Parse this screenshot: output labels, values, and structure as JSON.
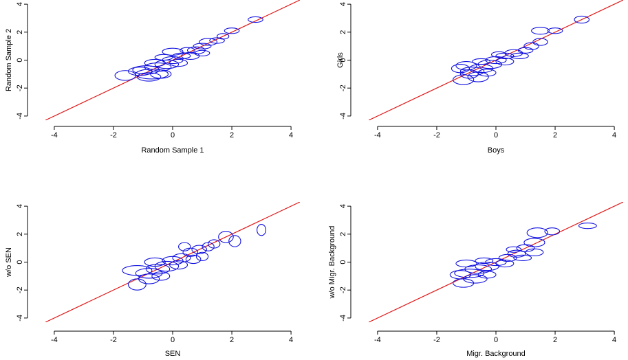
{
  "colors": {
    "ellipse": "#1010e0",
    "identity_line": "#e01818",
    "axis": "#000000"
  },
  "chart_data": [
    {
      "type": "scatter",
      "marker": "ellipse",
      "xlabel": "Random Sample 1",
      "ylabel": "Random Sample 2",
      "xlim": [
        -4.3,
        4.3
      ],
      "ylim": [
        -4.3,
        4.3
      ],
      "xticks": [
        "-4",
        "-2",
        "0",
        "2",
        "4"
      ],
      "yticks": [
        "-4",
        "-2",
        "0",
        "2",
        "4"
      ],
      "reference_line": "y = x",
      "points": [
        {
          "x": 2.8,
          "y": 2.9,
          "rx": 0.25,
          "ry": 0.2
        },
        {
          "x": 2.0,
          "y": 2.1,
          "rx": 0.25,
          "ry": 0.2
        },
        {
          "x": 1.7,
          "y": 1.7,
          "rx": 0.2,
          "ry": 0.2
        },
        {
          "x": 1.5,
          "y": 1.4,
          "rx": 0.25,
          "ry": 0.2
        },
        {
          "x": 1.2,
          "y": 1.3,
          "rx": 0.3,
          "ry": 0.25
        },
        {
          "x": 1.0,
          "y": 1.0,
          "rx": 0.3,
          "ry": 0.2
        },
        {
          "x": 0.8,
          "y": 0.7,
          "rx": 0.3,
          "ry": 0.25
        },
        {
          "x": 0.5,
          "y": 0.7,
          "rx": 0.25,
          "ry": 0.2
        },
        {
          "x": 0.3,
          "y": 0.3,
          "rx": 0.3,
          "ry": 0.2
        },
        {
          "x": 0.0,
          "y": 0.6,
          "rx": 0.35,
          "ry": 0.25
        },
        {
          "x": 0.0,
          "y": 0.0,
          "rx": 0.35,
          "ry": 0.25
        },
        {
          "x": -0.2,
          "y": -0.3,
          "rx": 0.4,
          "ry": 0.3
        },
        {
          "x": -0.5,
          "y": -0.5,
          "rx": 0.45,
          "ry": 0.3
        },
        {
          "x": -0.7,
          "y": -1.0,
          "rx": 0.55,
          "ry": 0.35
        },
        {
          "x": -0.6,
          "y": -0.2,
          "rx": 0.35,
          "ry": 0.25
        },
        {
          "x": -0.9,
          "y": -0.7,
          "rx": 0.45,
          "ry": 0.3
        },
        {
          "x": -1.1,
          "y": -0.8,
          "rx": 0.4,
          "ry": 0.3
        },
        {
          "x": -1.6,
          "y": -1.1,
          "rx": 0.35,
          "ry": 0.35
        },
        {
          "x": -0.8,
          "y": -1.2,
          "rx": 0.4,
          "ry": 0.3
        },
        {
          "x": -0.4,
          "y": -1.0,
          "rx": 0.35,
          "ry": 0.3
        },
        {
          "x": 0.2,
          "y": -0.2,
          "rx": 0.3,
          "ry": 0.25
        },
        {
          "x": 0.6,
          "y": 0.3,
          "rx": 0.3,
          "ry": 0.25
        },
        {
          "x": 1.0,
          "y": 0.5,
          "rx": 0.25,
          "ry": 0.2
        },
        {
          "x": -0.3,
          "y": 0.2,
          "rx": 0.3,
          "ry": 0.2
        }
      ]
    },
    {
      "type": "scatter",
      "marker": "ellipse",
      "xlabel": "Boys",
      "ylabel": "Girls",
      "xlim": [
        -4.3,
        4.3
      ],
      "ylim": [
        -4.3,
        4.3
      ],
      "xticks": [
        "-4",
        "-2",
        "0",
        "2",
        "4"
      ],
      "yticks": [
        "-4",
        "-2",
        "0",
        "2",
        "4"
      ],
      "reference_line": "y = x",
      "points": [
        {
          "x": 2.9,
          "y": 2.9,
          "rx": 0.25,
          "ry": 0.25
        },
        {
          "x": 2.0,
          "y": 2.1,
          "rx": 0.25,
          "ry": 0.2
        },
        {
          "x": 1.5,
          "y": 2.1,
          "rx": 0.3,
          "ry": 0.25
        },
        {
          "x": 1.5,
          "y": 1.3,
          "rx": 0.25,
          "ry": 0.25
        },
        {
          "x": 1.2,
          "y": 1.0,
          "rx": 0.25,
          "ry": 0.25
        },
        {
          "x": 1.0,
          "y": 0.7,
          "rx": 0.25,
          "ry": 0.2
        },
        {
          "x": 0.6,
          "y": 0.5,
          "rx": 0.3,
          "ry": 0.25
        },
        {
          "x": 0.3,
          "y": 0.3,
          "rx": 0.3,
          "ry": 0.2
        },
        {
          "x": 0.0,
          "y": 0.0,
          "rx": 0.35,
          "ry": 0.25
        },
        {
          "x": -0.2,
          "y": -0.3,
          "rx": 0.4,
          "ry": 0.3
        },
        {
          "x": -0.5,
          "y": -0.6,
          "rx": 0.4,
          "ry": 0.3
        },
        {
          "x": -0.8,
          "y": -0.8,
          "rx": 0.4,
          "ry": 0.3
        },
        {
          "x": -1.0,
          "y": -0.4,
          "rx": 0.35,
          "ry": 0.3
        },
        {
          "x": -1.1,
          "y": -1.4,
          "rx": 0.35,
          "ry": 0.35
        },
        {
          "x": -0.6,
          "y": -1.2,
          "rx": 0.35,
          "ry": 0.35
        },
        {
          "x": -0.9,
          "y": -1.0,
          "rx": 0.3,
          "ry": 0.3
        },
        {
          "x": -1.2,
          "y": -0.6,
          "rx": 0.3,
          "ry": 0.3
        },
        {
          "x": -0.3,
          "y": -0.9,
          "rx": 0.3,
          "ry": 0.25
        },
        {
          "x": 0.3,
          "y": -0.1,
          "rx": 0.3,
          "ry": 0.25
        },
        {
          "x": 0.8,
          "y": 0.3,
          "rx": 0.3,
          "ry": 0.2
        },
        {
          "x": -0.5,
          "y": -0.1,
          "rx": 0.3,
          "ry": 0.2
        },
        {
          "x": 0.1,
          "y": 0.4,
          "rx": 0.25,
          "ry": 0.2
        }
      ]
    },
    {
      "type": "scatter",
      "marker": "ellipse",
      "xlabel": "SEN",
      "ylabel": "w/o SEN",
      "xlim": [
        -4.3,
        4.3
      ],
      "ylim": [
        -4.3,
        4.3
      ],
      "xticks": [
        "-4",
        "-2",
        "0",
        "2",
        "4"
      ],
      "yticks": [
        "-4",
        "-2",
        "0",
        "2",
        "4"
      ],
      "reference_line": "y = x",
      "points": [
        {
          "x": 3.0,
          "y": 2.3,
          "rx": 0.15,
          "ry": 0.4
        },
        {
          "x": 2.1,
          "y": 1.5,
          "rx": 0.2,
          "ry": 0.4
        },
        {
          "x": 1.8,
          "y": 1.8,
          "rx": 0.25,
          "ry": 0.4
        },
        {
          "x": 1.4,
          "y": 1.3,
          "rx": 0.2,
          "ry": 0.3
        },
        {
          "x": 1.2,
          "y": 1.1,
          "rx": 0.2,
          "ry": 0.3
        },
        {
          "x": 0.9,
          "y": 0.9,
          "rx": 0.25,
          "ry": 0.3
        },
        {
          "x": 0.6,
          "y": 0.7,
          "rx": 0.25,
          "ry": 0.3
        },
        {
          "x": 0.4,
          "y": 1.1,
          "rx": 0.2,
          "ry": 0.3
        },
        {
          "x": 0.3,
          "y": 0.3,
          "rx": 0.3,
          "ry": 0.3
        },
        {
          "x": 0.0,
          "y": 0.1,
          "rx": 0.35,
          "ry": 0.3
        },
        {
          "x": -0.2,
          "y": -0.3,
          "rx": 0.4,
          "ry": 0.35
        },
        {
          "x": -0.5,
          "y": -0.5,
          "rx": 0.4,
          "ry": 0.35
        },
        {
          "x": -0.8,
          "y": -0.8,
          "rx": 0.45,
          "ry": 0.35
        },
        {
          "x": -1.2,
          "y": -0.6,
          "rx": 0.5,
          "ry": 0.35
        },
        {
          "x": -1.2,
          "y": -1.6,
          "rx": 0.3,
          "ry": 0.4
        },
        {
          "x": -0.8,
          "y": -1.2,
          "rx": 0.35,
          "ry": 0.35
        },
        {
          "x": -0.4,
          "y": -1.0,
          "rx": 0.3,
          "ry": 0.3
        },
        {
          "x": 0.2,
          "y": -0.2,
          "rx": 0.3,
          "ry": 0.3
        },
        {
          "x": 1.0,
          "y": 0.4,
          "rx": 0.2,
          "ry": 0.3
        },
        {
          "x": 0.7,
          "y": 0.2,
          "rx": 0.25,
          "ry": 0.3
        },
        {
          "x": -0.6,
          "y": 0.0,
          "rx": 0.35,
          "ry": 0.3
        }
      ]
    },
    {
      "type": "scatter",
      "marker": "ellipse",
      "xlabel": "Migr. Background",
      "ylabel": "w/o Migr. Background",
      "xlim": [
        -4.3,
        4.3
      ],
      "ylim": [
        -4.3,
        4.3
      ],
      "xticks": [
        "-4",
        "-2",
        "0",
        "2",
        "4"
      ],
      "yticks": [
        "-4",
        "-2",
        "0",
        "2",
        "4"
      ],
      "reference_line": "y = x",
      "points": [
        {
          "x": 3.1,
          "y": 2.6,
          "rx": 0.3,
          "ry": 0.2
        },
        {
          "x": 1.9,
          "y": 2.2,
          "rx": 0.25,
          "ry": 0.25
        },
        {
          "x": 1.4,
          "y": 2.1,
          "rx": 0.35,
          "ry": 0.35
        },
        {
          "x": 1.3,
          "y": 1.4,
          "rx": 0.35,
          "ry": 0.3
        },
        {
          "x": 1.3,
          "y": 0.7,
          "rx": 0.3,
          "ry": 0.25
        },
        {
          "x": 1.0,
          "y": 1.0,
          "rx": 0.3,
          "ry": 0.25
        },
        {
          "x": 0.7,
          "y": 0.6,
          "rx": 0.3,
          "ry": 0.25
        },
        {
          "x": 0.4,
          "y": 0.3,
          "rx": 0.3,
          "ry": 0.25
        },
        {
          "x": 0.0,
          "y": 0.0,
          "rx": 0.35,
          "ry": 0.25
        },
        {
          "x": -0.3,
          "y": -0.3,
          "rx": 0.4,
          "ry": 0.3
        },
        {
          "x": -0.6,
          "y": -0.5,
          "rx": 0.45,
          "ry": 0.3
        },
        {
          "x": -0.9,
          "y": -0.8,
          "rx": 0.5,
          "ry": 0.3
        },
        {
          "x": -1.0,
          "y": -0.1,
          "rx": 0.35,
          "ry": 0.25
        },
        {
          "x": -1.1,
          "y": -1.5,
          "rx": 0.35,
          "ry": 0.3
        },
        {
          "x": -0.7,
          "y": -1.2,
          "rx": 0.4,
          "ry": 0.3
        },
        {
          "x": -1.2,
          "y": -0.9,
          "rx": 0.35,
          "ry": 0.3
        },
        {
          "x": -0.3,
          "y": -0.9,
          "rx": 0.3,
          "ry": 0.25
        },
        {
          "x": 0.3,
          "y": -0.1,
          "rx": 0.3,
          "ry": 0.25
        },
        {
          "x": 0.9,
          "y": 0.3,
          "rx": 0.3,
          "ry": 0.2
        },
        {
          "x": 0.6,
          "y": 0.9,
          "rx": 0.25,
          "ry": 0.2
        },
        {
          "x": -0.4,
          "y": 0.1,
          "rx": 0.3,
          "ry": 0.2
        }
      ]
    }
  ]
}
